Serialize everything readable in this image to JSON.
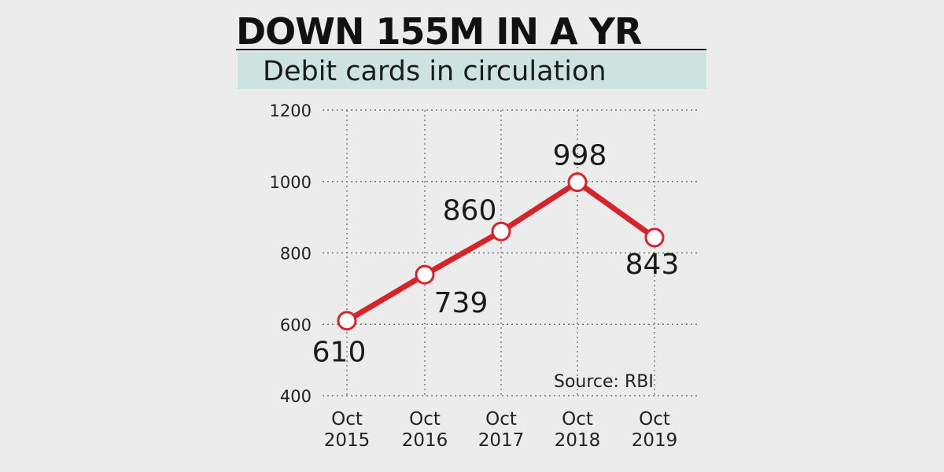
{
  "chart_data": {
    "type": "line",
    "title": "DOWN 155M IN A YR",
    "subtitle": "Debit cards in circulation",
    "categories": [
      [
        "Oct",
        "2015"
      ],
      [
        "Oct",
        "2016"
      ],
      [
        "Oct",
        "2017"
      ],
      [
        "Oct",
        "2018"
      ],
      [
        "Oct",
        "2019"
      ]
    ],
    "series": [
      {
        "values": [
          610,
          739,
          860,
          998,
          843
        ]
      }
    ],
    "data_labels": [
      "610",
      "739",
      "860",
      "998",
      "843"
    ],
    "yticks": [
      400,
      600,
      800,
      1000,
      1200
    ],
    "ylim": [
      400,
      1200
    ],
    "grid": true,
    "source": "Source: RBI",
    "colors": {
      "line": "#d7242b",
      "marker_fill": "#ffffff",
      "subtitle_band": "#cce3e0",
      "background": "#ececec"
    }
  }
}
